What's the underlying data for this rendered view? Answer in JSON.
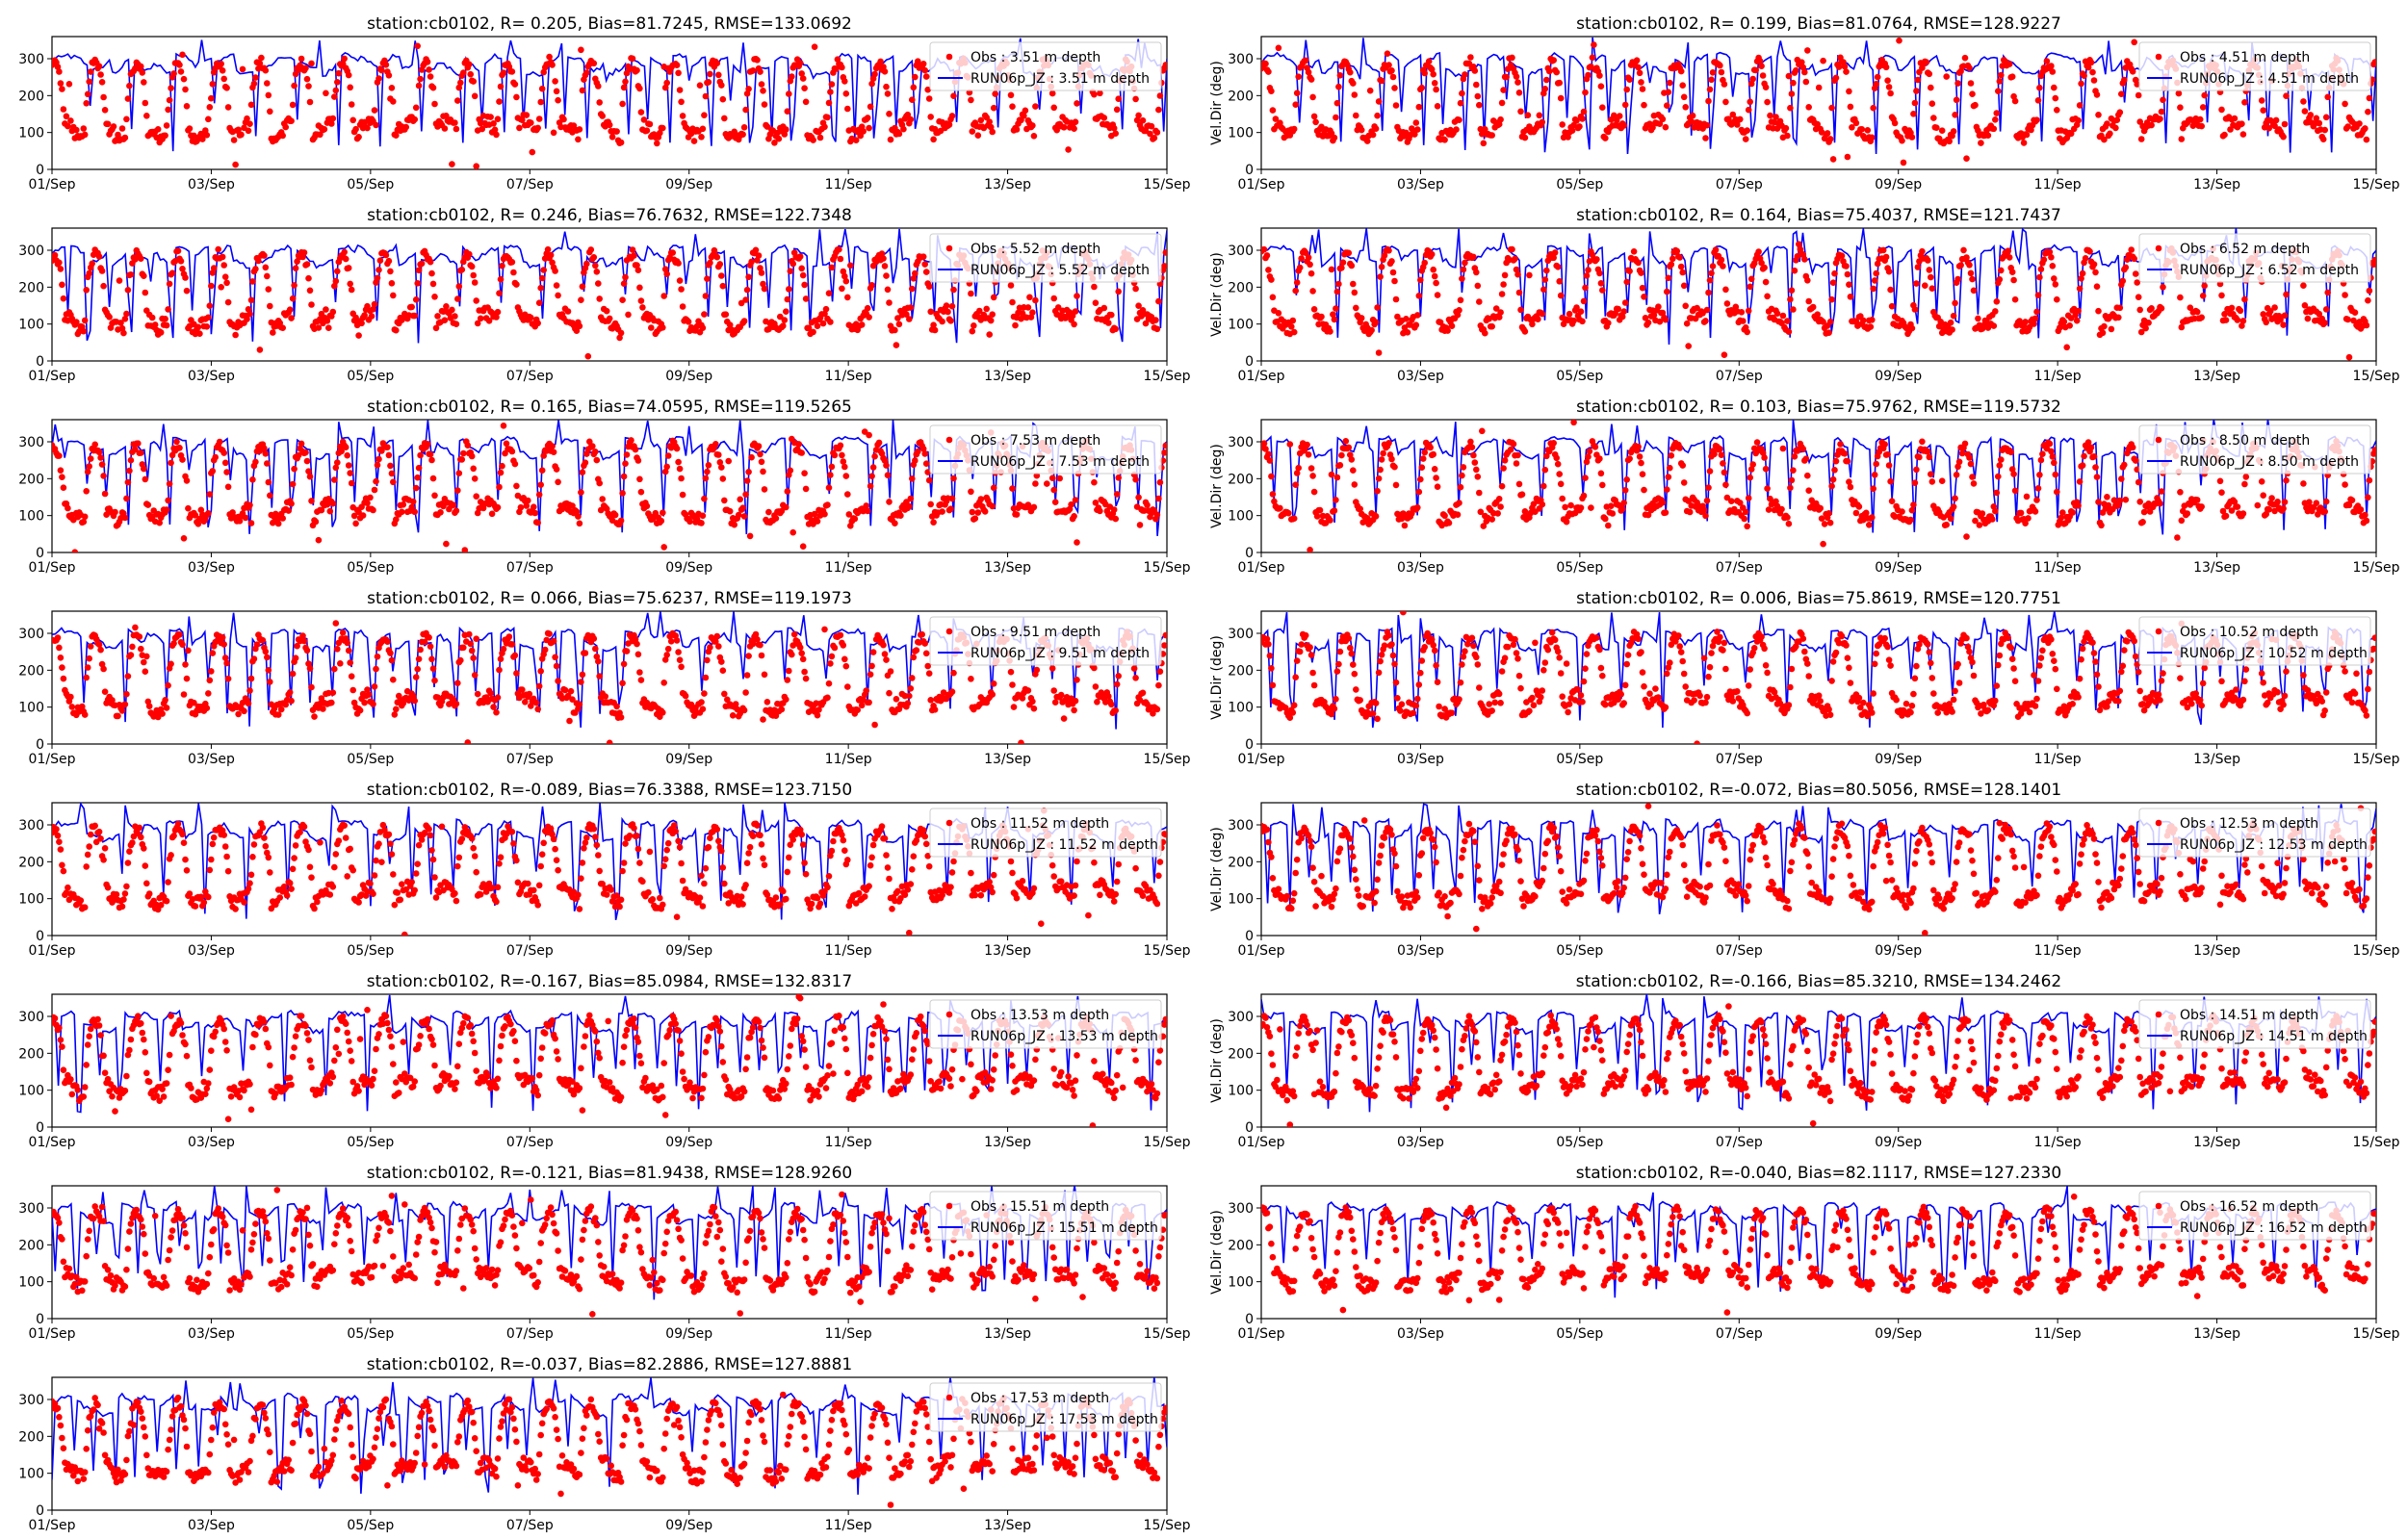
{
  "figure": {
    "x_ticks": [
      "01/Sep",
      "03/Sep",
      "05/Sep",
      "07/Sep",
      "09/Sep",
      "11/Sep",
      "13/Sep",
      "15/Sep"
    ],
    "y_ticks": [
      "0",
      "100",
      "200",
      "300"
    ],
    "right_ylabel": "Vel.Dir (deg)"
  },
  "chart_data": [
    {
      "type": "scatter",
      "title": "station:cb0102, R= 0.205, Bias=81.7245, RMSE=133.0692",
      "ylabel": "",
      "ylim": [
        0,
        360
      ],
      "xlim": [
        "2019-09-01",
        "2019-09-15"
      ],
      "legend_position": "top-right",
      "series": [
        {
          "name": "Obs : 3.51 m depth",
          "kind": "scatter",
          "color": "#ff0000"
        },
        {
          "name": "RUN06p_JZ : 3.51 m depth",
          "kind": "line",
          "color": "#0000ff"
        }
      ]
    },
    {
      "type": "scatter",
      "title": "station:cb0102, R= 0.199, Bias=81.0764, RMSE=128.9227",
      "ylabel": "Vel.Dir (deg)",
      "ylim": [
        0,
        360
      ],
      "xlim": [
        "2019-09-01",
        "2019-09-15"
      ],
      "legend_position": "top-right",
      "series": [
        {
          "name": "Obs : 4.51 m depth",
          "kind": "scatter",
          "color": "#ff0000"
        },
        {
          "name": "RUN06p_JZ : 4.51 m depth",
          "kind": "line",
          "color": "#0000ff"
        }
      ]
    },
    {
      "type": "scatter",
      "title": "station:cb0102, R= 0.246, Bias=76.7632, RMSE=122.7348",
      "ylabel": "",
      "ylim": [
        0,
        360
      ],
      "xlim": [
        "2019-09-01",
        "2019-09-15"
      ],
      "legend_position": "top-right",
      "series": [
        {
          "name": "Obs : 5.52 m depth",
          "kind": "scatter",
          "color": "#ff0000"
        },
        {
          "name": "RUN06p_JZ : 5.52 m depth",
          "kind": "line",
          "color": "#0000ff"
        }
      ]
    },
    {
      "type": "scatter",
      "title": "station:cb0102, R= 0.164, Bias=75.4037, RMSE=121.7437",
      "ylabel": "Vel.Dir (deg)",
      "ylim": [
        0,
        360
      ],
      "xlim": [
        "2019-09-01",
        "2019-09-15"
      ],
      "legend_position": "top-right",
      "series": [
        {
          "name": "Obs : 6.52 m depth",
          "kind": "scatter",
          "color": "#ff0000"
        },
        {
          "name": "RUN06p_JZ : 6.52 m depth",
          "kind": "line",
          "color": "#0000ff"
        }
      ]
    },
    {
      "type": "scatter",
      "title": "station:cb0102, R= 0.165, Bias=74.0595, RMSE=119.5265",
      "ylabel": "",
      "ylim": [
        0,
        360
      ],
      "xlim": [
        "2019-09-01",
        "2019-09-15"
      ],
      "legend_position": "top-right",
      "series": [
        {
          "name": "Obs : 7.53 m depth",
          "kind": "scatter",
          "color": "#ff0000"
        },
        {
          "name": "RUN06p_JZ : 7.53 m depth",
          "kind": "line",
          "color": "#0000ff"
        }
      ]
    },
    {
      "type": "scatter",
      "title": "station:cb0102, R= 0.103, Bias=75.9762, RMSE=119.5732",
      "ylabel": "Vel.Dir (deg)",
      "ylim": [
        0,
        360
      ],
      "xlim": [
        "2019-09-01",
        "2019-09-15"
      ],
      "legend_position": "top-right",
      "series": [
        {
          "name": "Obs : 8.50 m depth",
          "kind": "scatter",
          "color": "#ff0000"
        },
        {
          "name": "RUN06p_JZ : 8.50 m depth",
          "kind": "line",
          "color": "#0000ff"
        }
      ]
    },
    {
      "type": "scatter",
      "title": "station:cb0102, R= 0.066, Bias=75.6237, RMSE=119.1973",
      "ylabel": "",
      "ylim": [
        0,
        360
      ],
      "xlim": [
        "2019-09-01",
        "2019-09-15"
      ],
      "legend_position": "top-right",
      "series": [
        {
          "name": "Obs : 9.51 m depth",
          "kind": "scatter",
          "color": "#ff0000"
        },
        {
          "name": "RUN06p_JZ : 9.51 m depth",
          "kind": "line",
          "color": "#0000ff"
        }
      ]
    },
    {
      "type": "scatter",
      "title": "station:cb0102, R= 0.006, Bias=75.8619, RMSE=120.7751",
      "ylabel": "Vel.Dir (deg)",
      "ylim": [
        0,
        360
      ],
      "xlim": [
        "2019-09-01",
        "2019-09-15"
      ],
      "legend_position": "top-right",
      "series": [
        {
          "name": "Obs : 10.52 m depth",
          "kind": "scatter",
          "color": "#ff0000"
        },
        {
          "name": "RUN06p_JZ : 10.52 m depth",
          "kind": "line",
          "color": "#0000ff"
        }
      ]
    },
    {
      "type": "scatter",
      "title": "station:cb0102, R=-0.089, Bias=76.3388, RMSE=123.7150",
      "ylabel": "",
      "ylim": [
        0,
        360
      ],
      "xlim": [
        "2019-09-01",
        "2019-09-15"
      ],
      "legend_position": "top-right",
      "series": [
        {
          "name": "Obs : 11.52 m depth",
          "kind": "scatter",
          "color": "#ff0000"
        },
        {
          "name": "RUN06p_JZ : 11.52 m depth",
          "kind": "line",
          "color": "#0000ff"
        }
      ]
    },
    {
      "type": "scatter",
      "title": "station:cb0102, R=-0.072, Bias=80.5056, RMSE=128.1401",
      "ylabel": "Vel.Dir (deg)",
      "ylim": [
        0,
        360
      ],
      "xlim": [
        "2019-09-01",
        "2019-09-15"
      ],
      "legend_position": "top-right",
      "series": [
        {
          "name": "Obs : 12.53 m depth",
          "kind": "scatter",
          "color": "#ff0000"
        },
        {
          "name": "RUN06p_JZ : 12.53 m depth",
          "kind": "line",
          "color": "#0000ff"
        }
      ]
    },
    {
      "type": "scatter",
      "title": "station:cb0102, R=-0.167, Bias=85.0984, RMSE=132.8317",
      "ylabel": "",
      "ylim": [
        0,
        360
      ],
      "xlim": [
        "2019-09-01",
        "2019-09-15"
      ],
      "legend_position": "top-right",
      "series": [
        {
          "name": "Obs : 13.53 m depth",
          "kind": "scatter",
          "color": "#ff0000"
        },
        {
          "name": "RUN06p_JZ : 13.53 m depth",
          "kind": "line",
          "color": "#0000ff"
        }
      ]
    },
    {
      "type": "scatter",
      "title": "station:cb0102, R=-0.166, Bias=85.3210, RMSE=134.2462",
      "ylabel": "Vel.Dir (deg)",
      "ylim": [
        0,
        360
      ],
      "xlim": [
        "2019-09-01",
        "2019-09-15"
      ],
      "legend_position": "top-right",
      "series": [
        {
          "name": "Obs : 14.51 m depth",
          "kind": "scatter",
          "color": "#ff0000"
        },
        {
          "name": "RUN06p_JZ : 14.51 m depth",
          "kind": "line",
          "color": "#0000ff"
        }
      ]
    },
    {
      "type": "scatter",
      "title": "station:cb0102, R=-0.121, Bias=81.9438, RMSE=128.9260",
      "ylabel": "",
      "ylim": [
        0,
        360
      ],
      "xlim": [
        "2019-09-01",
        "2019-09-15"
      ],
      "legend_position": "top-right",
      "series": [
        {
          "name": "Obs : 15.51 m depth",
          "kind": "scatter",
          "color": "#ff0000"
        },
        {
          "name": "RUN06p_JZ : 15.51 m depth",
          "kind": "line",
          "color": "#0000ff"
        }
      ]
    },
    {
      "type": "scatter",
      "title": "station:cb0102, R=-0.040, Bias=82.1117, RMSE=127.2330",
      "ylabel": "Vel.Dir (deg)",
      "ylim": [
        0,
        360
      ],
      "xlim": [
        "2019-09-01",
        "2019-09-15"
      ],
      "legend_position": "top-right",
      "series": [
        {
          "name": "Obs : 16.52 m depth",
          "kind": "scatter",
          "color": "#ff0000"
        },
        {
          "name": "RUN06p_JZ : 16.52 m depth",
          "kind": "line",
          "color": "#0000ff"
        }
      ]
    },
    {
      "type": "scatter",
      "title": "station:cb0102, R=-0.037, Bias=82.2886, RMSE=127.8881",
      "ylabel": "",
      "ylim": [
        0,
        360
      ],
      "xlim": [
        "2019-09-01",
        "2019-09-15"
      ],
      "legend_position": "top-right",
      "series": [
        {
          "name": "Obs : 17.53 m depth",
          "kind": "scatter",
          "color": "#ff0000"
        },
        {
          "name": "RUN06p_JZ : 17.53 m depth",
          "kind": "line",
          "color": "#0000ff"
        }
      ]
    }
  ]
}
